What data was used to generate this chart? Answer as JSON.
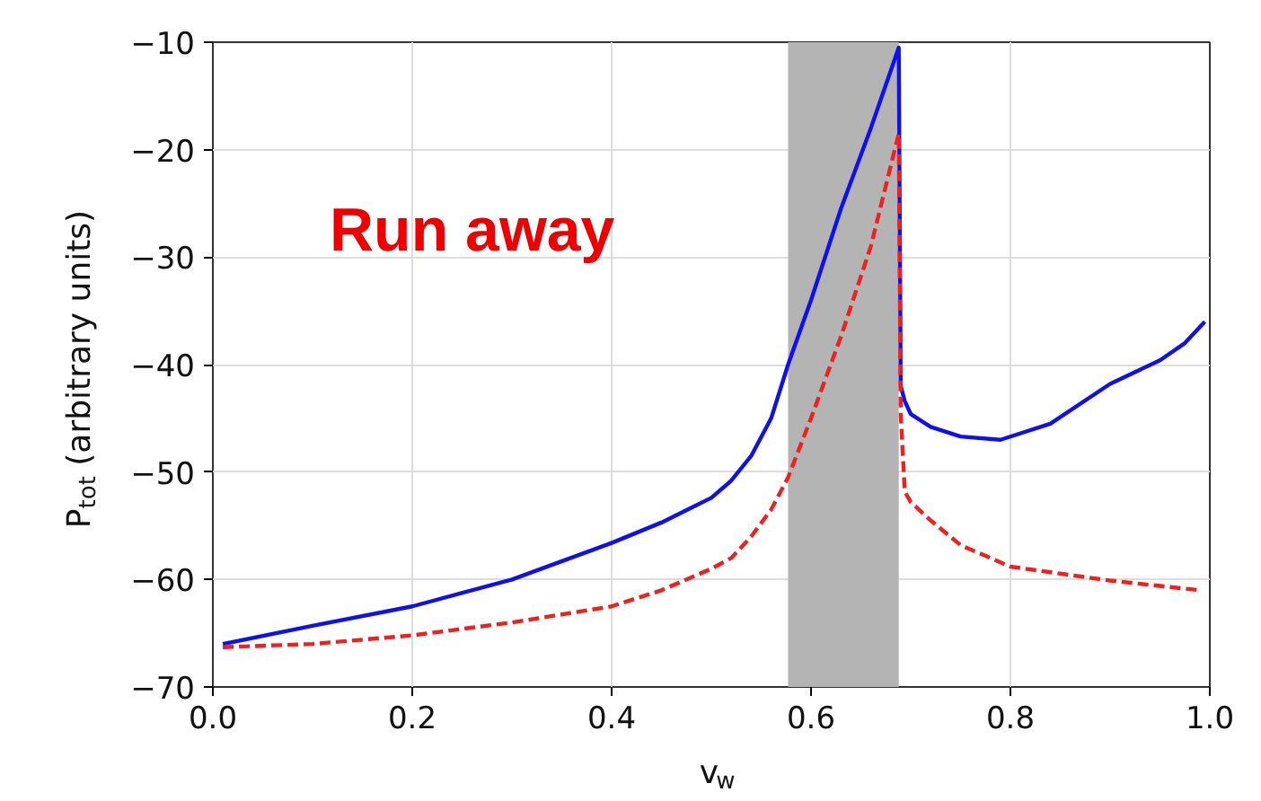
{
  "chart_data": {
    "type": "line",
    "xlabel": "v$_{w}$",
    "ylabel": "P$_{tot}$ (arbitrary units)",
    "xlim": [
      0.0,
      1.0
    ],
    "ylim": [
      -70,
      -10
    ],
    "xticks": [
      {
        "value": 0.0,
        "label": "0.0"
      },
      0.2,
      0.4,
      0.6,
      0.8,
      {
        "value": 1.0,
        "label": "1.0"
      }
    ],
    "yticks": [
      -70,
      -60,
      -50,
      -40,
      -30,
      -20,
      -10
    ],
    "grid": true,
    "annotations": [
      "Run away"
    ],
    "bands": [
      {
        "axis": "x",
        "from": 0.577,
        "to": 0.688,
        "color": "#b4b4b4"
      }
    ],
    "series": [
      {
        "color": "#1010ee",
        "line_style": "solid",
        "x": [
          0.01,
          0.1,
          0.2,
          0.3,
          0.4,
          0.45,
          0.5,
          0.52,
          0.54,
          0.56,
          0.577,
          0.6,
          0.63,
          0.66,
          0.688,
          0.69,
          0.694,
          0.7,
          0.72,
          0.75,
          0.79,
          0.84,
          0.9,
          0.95,
          0.975,
          0.995
        ],
        "values": [
          -66,
          -64.3,
          -62.5,
          -60,
          -56.6,
          -54.7,
          -52.4,
          -50.8,
          -48.5,
          -45,
          -40,
          -34,
          -25.5,
          -18,
          -10.5,
          -42,
          -43.4,
          -44.6,
          -45.8,
          -46.7,
          -47,
          -45.5,
          -41.8,
          -39.6,
          -38,
          -36
        ]
      },
      {
        "color": "#ee2020",
        "line_style": "dashed",
        "x": [
          0.01,
          0.1,
          0.2,
          0.3,
          0.4,
          0.45,
          0.5,
          0.52,
          0.54,
          0.56,
          0.577,
          0.6,
          0.63,
          0.66,
          0.688,
          0.69,
          0.694,
          0.7,
          0.72,
          0.75,
          0.8,
          0.9,
          0.99
        ],
        "values": [
          -66.3,
          -66,
          -65.2,
          -64,
          -62.5,
          -61,
          -59,
          -58,
          -56,
          -53.5,
          -50.5,
          -45,
          -37.4,
          -29,
          -18.5,
          -44.6,
          -51.8,
          -52.8,
          -54.5,
          -56.8,
          -58.8,
          -60.1,
          -61
        ]
      }
    ]
  }
}
